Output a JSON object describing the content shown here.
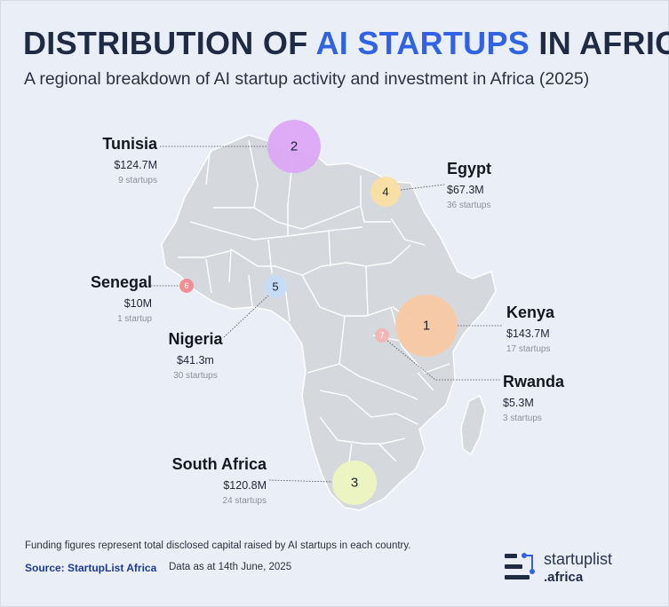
{
  "header": {
    "title_before": "DISTRIBUTION OF ",
    "title_accent": "AI STARTUPS",
    "title_after": " IN AFRICA",
    "subtitle": "A regional breakdown of AI startup activity and investment in Africa (2025)"
  },
  "countries": [
    {
      "name": "Tunisia",
      "amount": "$124.7M",
      "count": "9 startups",
      "rank": "2",
      "color": "#dca6f6"
    },
    {
      "name": "Egypt",
      "amount": "$67.3M",
      "count": "36 startups",
      "rank": "4",
      "color": "#fbe0a0"
    },
    {
      "name": "Senegal",
      "amount": "$10M",
      "count": "1 startup",
      "rank": "6",
      "color": "#f3868a"
    },
    {
      "name": "Nigeria",
      "amount": "$41.3m",
      "count": "30 startups",
      "rank": "5",
      "color": "#c4dcf6"
    },
    {
      "name": "Kenya",
      "amount": "$143.7M",
      "count": "17 startups",
      "rank": "1",
      "color": "#fac9a2"
    },
    {
      "name": "Rwanda",
      "amount": "$5.3M",
      "count": "3 startups",
      "rank": "7",
      "color": "#f5b3b3"
    },
    {
      "name": "South Africa",
      "amount": "$120.8M",
      "count": "24 startups",
      "rank": "3",
      "color": "#eef7bf"
    }
  ],
  "map": {
    "land_color": "#d5d9de",
    "border_color": "#ffffff",
    "leader_color": "#4a4f58"
  },
  "footer": {
    "note": "Funding figures represent total disclosed capital raised by AI startups in each country.",
    "source": "Source: StartupList Africa",
    "date": "Data as at 14th June,  2025"
  },
  "brand": {
    "name": "startuplist",
    "tld": ".africa",
    "accent": "#2f63e3",
    "dark": "#1f2a44"
  }
}
